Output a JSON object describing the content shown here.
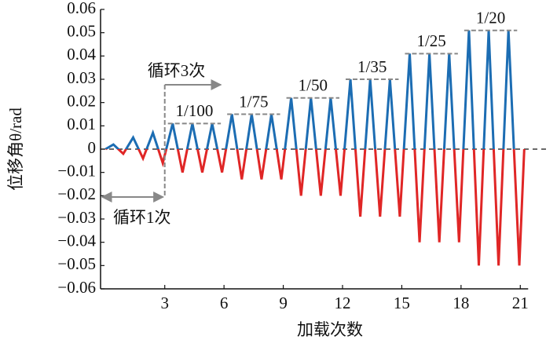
{
  "chart_data": {
    "type": "line",
    "x_label": "加载次数",
    "y_label": "位移角θ/rad",
    "xlim": [
      -0.25,
      22.5
    ],
    "ylim": [
      -0.06,
      0.06
    ],
    "xticks": [
      3,
      6,
      9,
      12,
      15,
      18,
      21
    ],
    "yticks": [
      0.06,
      0.05,
      0.04,
      0.03,
      0.02,
      0.01,
      0,
      {
        "value": -0.01,
        "label": "−0.01"
      },
      {
        "value": -0.02,
        "label": "−0.02"
      },
      {
        "value": -0.03,
        "label": "−0.03"
      },
      {
        "value": -0.04,
        "label": "−0.04"
      },
      {
        "value": -0.05,
        "label": "−0.05"
      },
      {
        "value": -0.06,
        "label": "−0.06"
      }
    ],
    "positive_color": "#1c6db3",
    "negative_color": "#e02626",
    "x": [
      0,
      0.4,
      0.9,
      1.4,
      1.9,
      2.4,
      2.9,
      3.4,
      3.9,
      4.4,
      4.9,
      5.4,
      5.9,
      6.4,
      6.9,
      7.4,
      7.9,
      8.4,
      8.9,
      9.4,
      9.9,
      10.4,
      10.9,
      11.4,
      11.9,
      12.4,
      12.9,
      13.4,
      13.9,
      14.4,
      14.9,
      15.4,
      15.9,
      16.4,
      16.9,
      17.4,
      17.9,
      18.4,
      18.9,
      19.4,
      19.9,
      20.4,
      20.95,
      21.2
    ],
    "values": [
      0,
      0.002,
      -0.002,
      0.005,
      -0.004,
      0.007,
      -0.006,
      0.011,
      -0.01,
      0.011,
      -0.01,
      0.011,
      -0.01,
      0.015,
      -0.013,
      0.015,
      -0.013,
      0.015,
      -0.013,
      0.022,
      -0.02,
      0.022,
      -0.02,
      0.022,
      -0.02,
      0.03,
      -0.029,
      0.03,
      -0.029,
      0.03,
      -0.029,
      0.041,
      -0.04,
      0.041,
      -0.04,
      0.041,
      -0.04,
      0.051,
      -0.05,
      0.051,
      -0.05,
      0.051,
      -0.05,
      0
    ],
    "level_labels": [
      {
        "text": "1/100",
        "x": [
          3,
          6
        ]
      },
      {
        "text": "1/75",
        "x": [
          6,
          9
        ]
      },
      {
        "text": "1/50",
        "x": [
          9,
          12
        ]
      },
      {
        "text": "1/35",
        "x": [
          12,
          15
        ]
      },
      {
        "text": "1/25",
        "x": [
          15,
          18
        ]
      },
      {
        "text": "1/20",
        "x": [
          18,
          21
        ]
      }
    ],
    "cycle_notes": [
      {
        "text": "循环3次",
        "x": [
          3,
          6
        ]
      },
      {
        "text": "循环1次",
        "x": [
          0,
          3
        ]
      }
    ]
  }
}
